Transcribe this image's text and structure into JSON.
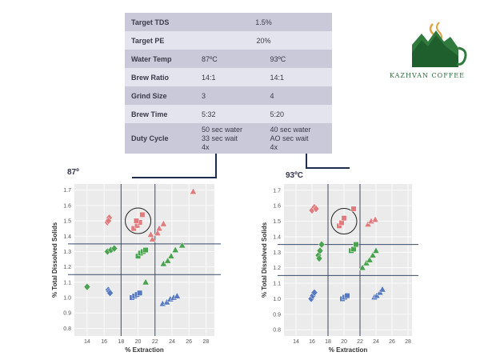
{
  "brand": {
    "name": "KAZHVAN COFFEE"
  },
  "table": {
    "rows": [
      {
        "label": "Target TDS",
        "span": "1.5%"
      },
      {
        "label": "Target PE",
        "span": "20%"
      },
      {
        "label": "Water Temp",
        "a": "87ºC",
        "b": "93ºC"
      },
      {
        "label": "Brew Ratio",
        "a": "14:1",
        "b": "14:1"
      },
      {
        "label": "Grind Size",
        "a": "3",
        "b": "4"
      },
      {
        "label": "Brew Time",
        "a": "5:32",
        "b": "5:20"
      },
      {
        "label": "Duty Cycle",
        "a": [
          "50 sec water",
          "33 sec wait",
          "4x"
        ],
        "b": [
          "40 sec water",
          "AO sec wait",
          "4x"
        ]
      }
    ]
  },
  "colors": {
    "red": "#e07b7e",
    "green": "#4aa34f",
    "blue": "#5679c0",
    "line": "#3a4a6a",
    "grid": "#ffffff",
    "panel": "#ebebeb"
  },
  "chart_data": [
    {
      "type": "scatter",
      "title": "87º",
      "xlabel": "% Extraction",
      "ylabel": "% Total Dissolved Solids",
      "xlim": [
        12.5,
        29
      ],
      "ylim": [
        0.75,
        1.74
      ],
      "xticks": [
        14,
        16,
        18,
        20,
        22,
        24,
        26,
        28
      ],
      "yticks": [
        0.8,
        0.9,
        1.0,
        1.1,
        1.2,
        1.3,
        1.4,
        1.5,
        1.6,
        1.7
      ],
      "ref_lines": {
        "x": [
          18,
          22
        ],
        "y": [
          1.15,
          1.35
        ]
      },
      "highlight": {
        "x": 20,
        "y": 1.5
      },
      "series": [
        {
          "name": "red-diamond",
          "marker": "diamond",
          "color": "red",
          "points": [
            [
              16.4,
              1.49
            ],
            [
              16.6,
              1.52
            ],
            [
              16.5,
              1.5
            ]
          ]
        },
        {
          "name": "red-square",
          "marker": "square",
          "color": "red",
          "points": [
            [
              19.5,
              1.45
            ],
            [
              19.9,
              1.47
            ],
            [
              20.2,
              1.49
            ],
            [
              19.8,
              1.5
            ],
            [
              20.5,
              1.54
            ]
          ]
        },
        {
          "name": "red-triangle",
          "marker": "triangle",
          "color": "red",
          "points": [
            [
              21.7,
              1.38
            ],
            [
              22.3,
              1.42
            ],
            [
              22.5,
              1.45
            ],
            [
              23.0,
              1.48
            ],
            [
              26.5,
              1.69
            ],
            [
              21.5,
              1.41
            ]
          ]
        },
        {
          "name": "green-diamond",
          "marker": "diamond",
          "color": "green",
          "points": [
            [
              14.0,
              1.07
            ],
            [
              16.4,
              1.3
            ],
            [
              16.8,
              1.31
            ],
            [
              17.2,
              1.32
            ]
          ]
        },
        {
          "name": "green-square",
          "marker": "square",
          "color": "green",
          "points": [
            [
              20.0,
              1.27
            ],
            [
              20.3,
              1.29
            ],
            [
              20.6,
              1.3
            ],
            [
              20.9,
              1.31
            ]
          ]
        },
        {
          "name": "green-triangle",
          "marker": "triangle",
          "color": "green",
          "points": [
            [
              20.9,
              1.1
            ],
            [
              23.0,
              1.22
            ],
            [
              23.5,
              1.24
            ],
            [
              23.9,
              1.27
            ],
            [
              24.4,
              1.31
            ],
            [
              25.2,
              1.34
            ]
          ]
        },
        {
          "name": "blue-diamond",
          "marker": "diamond",
          "color": "blue",
          "points": [
            [
              16.5,
              1.05
            ],
            [
              16.6,
              1.04
            ],
            [
              16.7,
              1.03
            ]
          ]
        },
        {
          "name": "blue-square",
          "marker": "square",
          "color": "blue",
          "points": [
            [
              19.3,
              1.0
            ],
            [
              19.6,
              1.01
            ],
            [
              19.9,
              1.02
            ],
            [
              20.2,
              1.03
            ]
          ]
        },
        {
          "name": "blue-triangle",
          "marker": "triangle",
          "color": "blue",
          "points": [
            [
              22.9,
              0.96
            ],
            [
              23.4,
              0.97
            ],
            [
              23.8,
              0.99
            ],
            [
              24.2,
              1.0
            ],
            [
              24.6,
              1.01
            ]
          ]
        }
      ]
    },
    {
      "type": "scatter",
      "title": "93ºC",
      "xlabel": "% Extraction",
      "ylabel": "% Total Dissolved Solids",
      "xlim": [
        12.5,
        28.5
      ],
      "ylim": [
        0.76,
        1.74
      ],
      "xticks": [
        14,
        16,
        18,
        20,
        22,
        24,
        26,
        28
      ],
      "yticks": [
        0.8,
        0.9,
        1.0,
        1.1,
        1.2,
        1.3,
        1.4,
        1.5,
        1.6,
        1.7
      ],
      "ref_lines": {
        "x": [
          18,
          22
        ],
        "y": [
          1.15,
          1.35
        ]
      },
      "highlight": {
        "x": 20,
        "y": 1.5
      },
      "series": [
        {
          "name": "red-diamond",
          "marker": "diamond",
          "color": "red",
          "points": [
            [
              16.0,
              1.57
            ],
            [
              16.3,
              1.59
            ],
            [
              16.5,
              1.58
            ]
          ]
        },
        {
          "name": "red-square",
          "marker": "square",
          "color": "red",
          "points": [
            [
              19.4,
              1.47
            ],
            [
              19.7,
              1.49
            ],
            [
              20.0,
              1.52
            ],
            [
              21.2,
              1.58
            ]
          ]
        },
        {
          "name": "red-triangle",
          "marker": "triangle",
          "color": "red",
          "points": [
            [
              23.0,
              1.48
            ],
            [
              23.4,
              1.5
            ],
            [
              23.9,
              1.51
            ]
          ]
        },
        {
          "name": "green-diamond",
          "marker": "diamond",
          "color": "green",
          "points": [
            [
              16.8,
              1.28
            ],
            [
              17.0,
              1.31
            ],
            [
              17.2,
              1.35
            ],
            [
              16.9,
              1.26
            ]
          ]
        },
        {
          "name": "green-square",
          "marker": "square",
          "color": "green",
          "points": [
            [
              20.9,
              1.31
            ],
            [
              21.2,
              1.32
            ],
            [
              21.5,
              1.35
            ]
          ]
        },
        {
          "name": "green-triangle",
          "marker": "triangle",
          "color": "green",
          "points": [
            [
              22.3,
              1.2
            ],
            [
              22.8,
              1.23
            ],
            [
              23.2,
              1.25
            ],
            [
              23.6,
              1.28
            ],
            [
              24.0,
              1.31
            ]
          ]
        },
        {
          "name": "blue-diamond",
          "marker": "diamond",
          "color": "blue",
          "points": [
            [
              15.9,
              1.0
            ],
            [
              16.1,
              1.02
            ],
            [
              16.3,
              1.04
            ]
          ]
        },
        {
          "name": "blue-square",
          "marker": "square",
          "color": "blue",
          "points": [
            [
              19.8,
              1.0
            ],
            [
              20.1,
              1.01
            ],
            [
              20.4,
              1.02
            ]
          ]
        },
        {
          "name": "blue-triangle",
          "marker": "triangle",
          "color": "blue",
          "points": [
            [
              23.8,
              1.01
            ],
            [
              24.1,
              1.02
            ],
            [
              24.5,
              1.04
            ],
            [
              24.8,
              1.06
            ]
          ]
        }
      ]
    }
  ]
}
